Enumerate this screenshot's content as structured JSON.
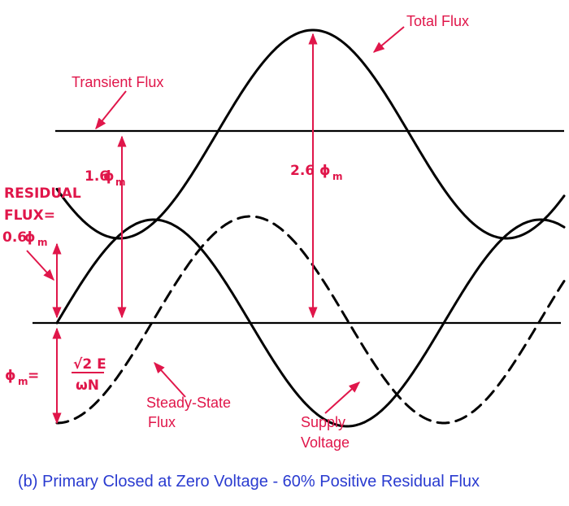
{
  "labels": {
    "total_flux": "Total Flux",
    "transient_flux": "Transient Flux",
    "residual_line1": "RESIDUAL",
    "residual_line2": "FLUX=",
    "residual_value": "0.6",
    "phi": "ϕ",
    "phi_sub": "m",
    "transient_value": "1.6",
    "total_value": "2.6",
    "phi_def_num": "√2 E",
    "phi_def_den": "ωN",
    "steady_state_line1": "Steady-State",
    "steady_state_line2": "Flux",
    "supply_line1": "Supply",
    "supply_line2": "Voltage"
  },
  "caption": "(b) Primary Closed at Zero Voltage - 60% Positive Residual Flux",
  "colors": {
    "annotation": "#e0164a",
    "caption": "#2a3bd0",
    "curves": "#000000"
  }
}
